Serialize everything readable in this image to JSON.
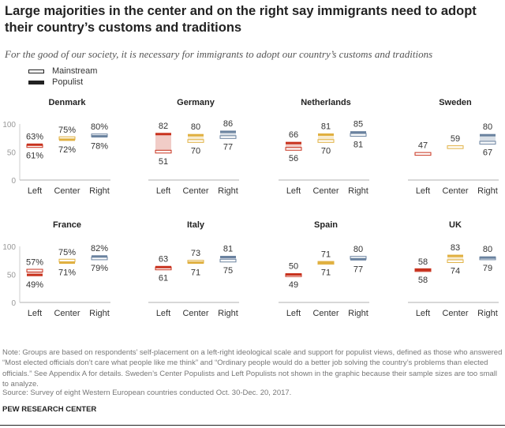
{
  "title": "Large majorities in the center and on the right say immigrants need to adopt their country’s customs and traditions",
  "subtitle": "For the good of our society, it is necessary for immigrants to adopt our country’s customs and traditions",
  "legend": {
    "mainstream": "Mainstream",
    "populist": "Populist"
  },
  "note": "Note: Groups are based on respondents’ self-placement on a left-right ideological scale and support for populist views, defined as those who answered “Most elected officials don’t care what people like me think” and “Ordinary people would do a better job solving the country’s problems than elected officials.” See Appendix A for details. Sweden’s Center Populists and Left Populists not shown in the graphic because their sample sizes are too small to analyze.",
  "source": "Source: Survey of eight Western European countries conducted Oct. 30-Dec. 20, 2017.",
  "brand": "PEW RESEARCH CENTER",
  "colors": {
    "Left": "#c8321e",
    "Center": "#e0b040",
    "Right": "#6a829f"
  },
  "chart_data": {
    "type": "range-dot",
    "ylim": [
      0,
      100
    ],
    "yticks": [
      "0",
      "50",
      "100"
    ],
    "categories": [
      "Left",
      "Center",
      "Right"
    ],
    "panels": [
      {
        "country": "Denmark",
        "pct": true,
        "groups": [
          {
            "populist": 63,
            "mainstream": 61
          },
          {
            "populist": 72,
            "mainstream": 75
          },
          {
            "populist": 78,
            "mainstream": 80
          }
        ]
      },
      {
        "country": "Germany",
        "groups": [
          {
            "populist": 82,
            "mainstream": 51
          },
          {
            "populist": 80,
            "mainstream": 70
          },
          {
            "populist": 86,
            "mainstream": 77
          }
        ]
      },
      {
        "country": "Netherlands",
        "groups": [
          {
            "populist": 66,
            "mainstream": 56
          },
          {
            "populist": 81,
            "mainstream": 70
          },
          {
            "populist": 85,
            "mainstream": 81
          }
        ]
      },
      {
        "country": "Sweden",
        "groups": [
          {
            "populist": null,
            "mainstream": 47
          },
          {
            "populist": null,
            "mainstream": 59
          },
          {
            "populist": 80,
            "mainstream": 67
          }
        ]
      },
      {
        "country": "France",
        "pct": true,
        "groups": [
          {
            "populist": 49,
            "mainstream": 57
          },
          {
            "populist": 71,
            "mainstream": 75
          },
          {
            "populist": 82,
            "mainstream": 79
          }
        ]
      },
      {
        "country": "Italy",
        "groups": [
          {
            "populist": 63,
            "mainstream": 61
          },
          {
            "populist": 71,
            "mainstream": 73
          },
          {
            "populist": 81,
            "mainstream": 75
          }
        ]
      },
      {
        "country": "Spain",
        "groups": [
          {
            "populist": 50,
            "mainstream": 49
          },
          {
            "populist": 71,
            "mainstream": 71
          },
          {
            "populist": 77,
            "mainstream": 80
          }
        ]
      },
      {
        "country": "UK",
        "groups": [
          {
            "populist": 58,
            "mainstream": 58
          },
          {
            "populist": 83,
            "mainstream": 74
          },
          {
            "populist": 80,
            "mainstream": 79
          }
        ]
      }
    ]
  }
}
